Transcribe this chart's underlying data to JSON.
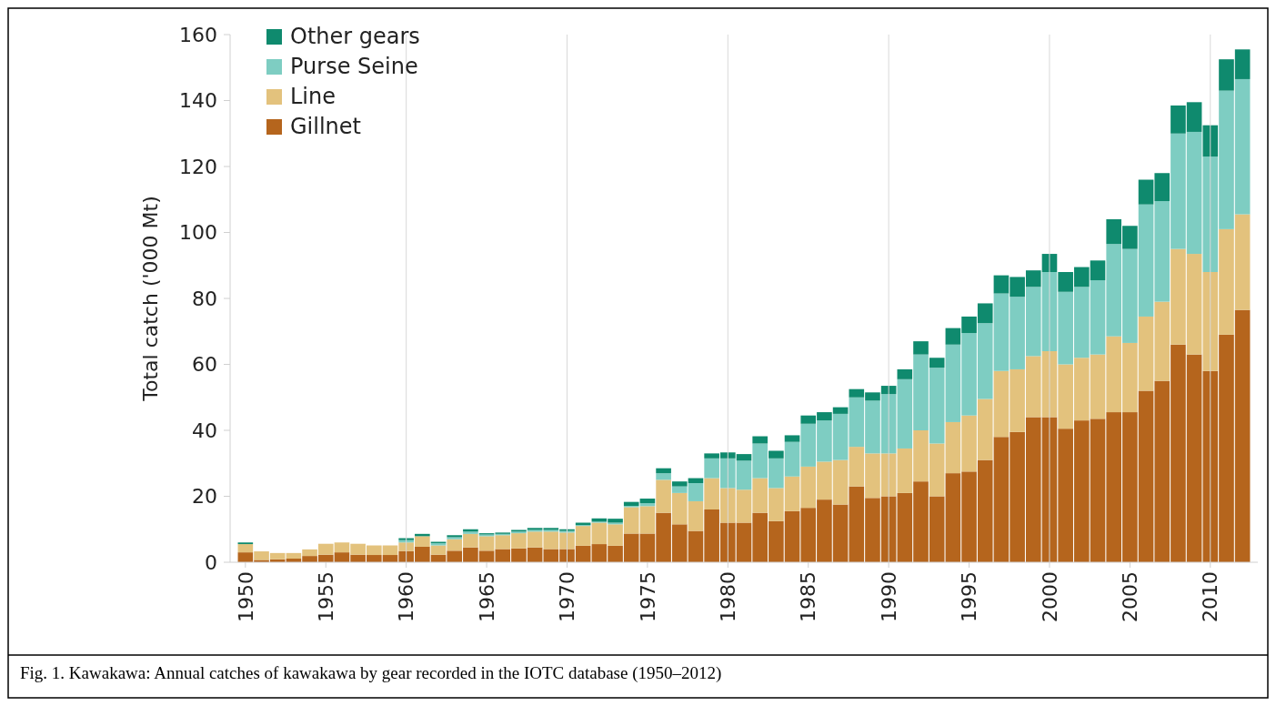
{
  "chart_data": {
    "type": "bar",
    "stacked": true,
    "ylabel": "Total catch ('000 Mt)",
    "categories": [
      "1950",
      null,
      null,
      null,
      null,
      "1955",
      null,
      null,
      null,
      null,
      "1960",
      null,
      null,
      null,
      null,
      "1965",
      null,
      null,
      null,
      null,
      "1970",
      null,
      null,
      null,
      null,
      "1975",
      null,
      null,
      null,
      null,
      "1980",
      null,
      null,
      null,
      null,
      "1985",
      null,
      null,
      null,
      null,
      "1990",
      null,
      null,
      null,
      null,
      "1995",
      null,
      null,
      null,
      null,
      "2000",
      null,
      null,
      null,
      null,
      "2005",
      null,
      null,
      null,
      null,
      "2010",
      null,
      null
    ],
    "series": [
      {
        "name": "Gillnet",
        "color": "#b5651d",
        "values": [
          3,
          0.7,
          0.9,
          1.1,
          1.9,
          2.3,
          3,
          2.3,
          2.2,
          2.2,
          3.4,
          4.7,
          2.3,
          3.5,
          4.5,
          3.5,
          4,
          4.2,
          4.5,
          4,
          4,
          5,
          5.5,
          5,
          8.7,
          8.7,
          15,
          11.5,
          9.5,
          16,
          12,
          12,
          15,
          12.5,
          15.5,
          16.5,
          19,
          17.5,
          23,
          19.5,
          20,
          21,
          24.5,
          20,
          27,
          27.5,
          31,
          38,
          39.5,
          44,
          44,
          40.5,
          43,
          43.5,
          45.5,
          45.5,
          52,
          55,
          66,
          63,
          58,
          69,
          76.5
        ]
      },
      {
        "name": "Line",
        "color": "#e3c27d",
        "values": [
          2.5,
          2.6,
          1.9,
          1.7,
          2,
          3.3,
          3,
          3.3,
          2.9,
          2.9,
          2.6,
          3.2,
          2.8,
          3.5,
          4.1,
          4.4,
          4.2,
          4.6,
          4.8,
          5.3,
          5,
          6,
          6.5,
          6.5,
          8,
          8.3,
          10,
          9.5,
          9,
          9.5,
          10.5,
          10,
          10.5,
          10,
          10.5,
          12.5,
          11.5,
          13.5,
          12,
          13.5,
          13,
          13.5,
          15.5,
          16,
          15.5,
          17,
          18.5,
          20,
          19,
          18.5,
          20,
          19.5,
          19,
          19.5,
          23,
          21,
          22.5,
          24,
          29,
          30.5,
          30,
          32,
          29
        ]
      },
      {
        "name": "Purse Seine",
        "color": "#7ecdc2",
        "values": [
          0,
          0,
          0,
          0,
          0,
          0,
          0,
          0,
          0,
          0,
          0.7,
          0,
          0.7,
          0.6,
          0.7,
          0.5,
          0.4,
          0.5,
          0.5,
          0.5,
          0.5,
          0.3,
          0.3,
          0.5,
          0.4,
          0.9,
          2,
          2,
          5.5,
          6,
          9,
          8.8,
          10.5,
          9,
          10.5,
          13,
          12.5,
          14,
          15,
          16,
          18,
          21,
          23,
          23,
          23.5,
          25,
          23,
          23.5,
          22,
          21,
          24,
          22,
          21.5,
          22.5,
          28,
          28.5,
          34,
          30.5,
          35,
          37,
          35,
          42,
          41
        ]
      },
      {
        "name": "Other gears",
        "color": "#0f8a6e",
        "values": [
          0.5,
          0,
          0,
          0,
          0,
          0,
          0,
          0,
          0,
          0,
          0.6,
          0.7,
          0.4,
          0.6,
          0.7,
          0.4,
          0.4,
          0.5,
          0.6,
          0.6,
          0.5,
          0.7,
          1,
          1.2,
          1.2,
          1.4,
          1.5,
          1.5,
          1.5,
          1.5,
          1.8,
          2,
          2.2,
          2.3,
          2,
          2.5,
          2.5,
          2,
          2.5,
          2.5,
          2.5,
          3,
          4,
          3,
          5,
          5,
          6,
          5.5,
          6,
          5,
          5.5,
          6,
          6,
          6,
          7.5,
          7,
          7.5,
          8.5,
          8.5,
          9,
          9.5,
          9.5,
          9
        ]
      }
    ],
    "ylim": [
      0,
      160
    ],
    "yticks": [
      0,
      20,
      40,
      60,
      80,
      100,
      120,
      140,
      160
    ],
    "ref_lines": [
      {
        "axis": "x",
        "value": "1960",
        "color": "#d9d9d9"
      },
      {
        "axis": "x",
        "value": "1970",
        "color": "#d9d9d9"
      },
      {
        "axis": "x",
        "value": "1980",
        "color": "#d9d9d9"
      },
      {
        "axis": "x",
        "value": "1990",
        "color": "#d9d9d9"
      },
      {
        "axis": "x",
        "value": "2000",
        "color": "#d9d9d9"
      },
      {
        "axis": "x",
        "value": "2010",
        "color": "#d9d9d9"
      }
    ],
    "legend": "top left",
    "annotations": [
      "Fig. 1. Kawakawa: Annual catches of kawakawa by gear recorded in the IOTC database (1950–2012)"
    ]
  }
}
